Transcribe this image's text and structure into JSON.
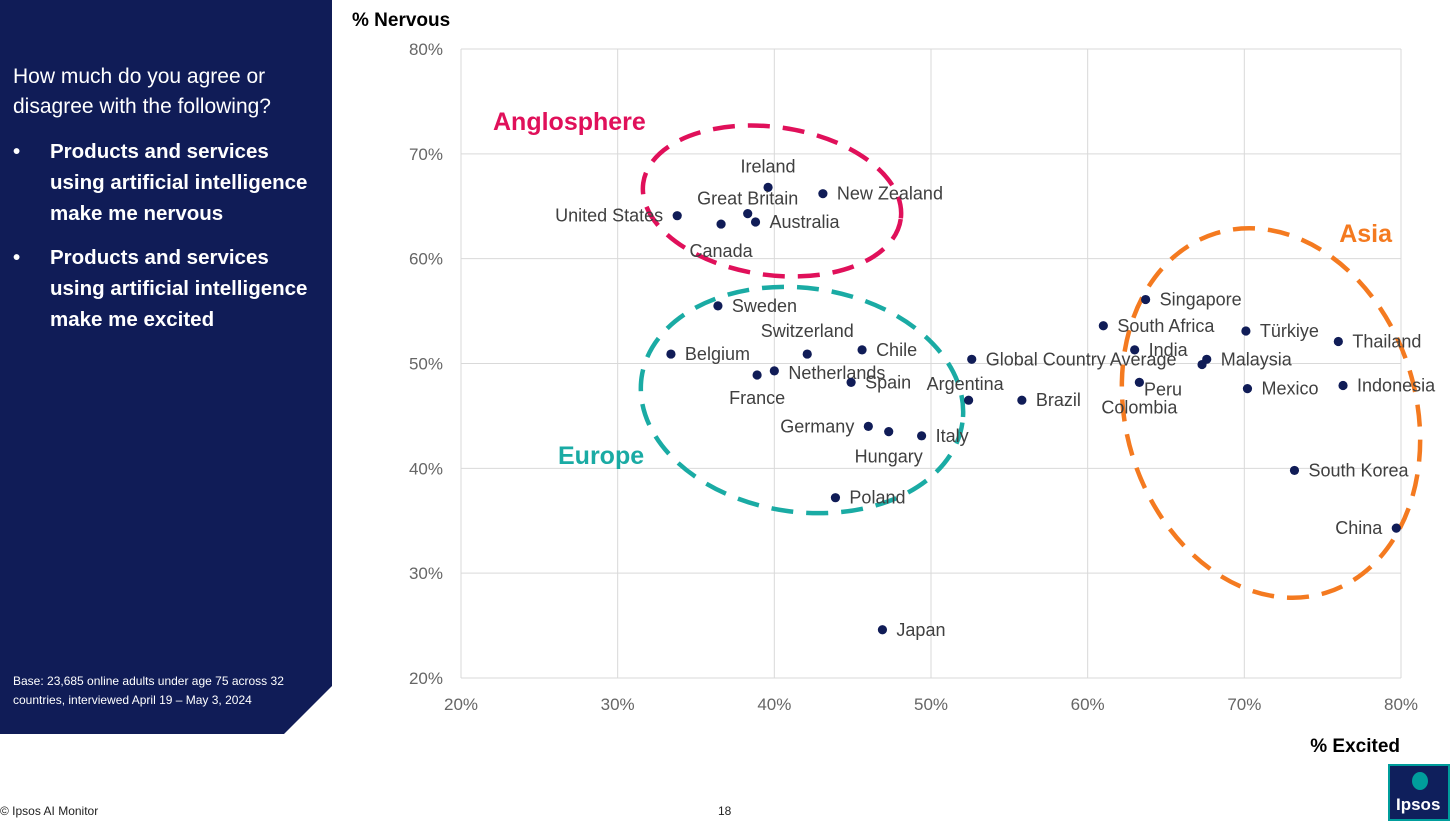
{
  "sidebar": {
    "question": "How much do you agree or disagree with the following?",
    "bullet_glyph": "•",
    "bullets": [
      "Products and services using artificial intelligence make me nervous",
      "Products and services using artificial intelligence make me excited"
    ],
    "base_note": "Base: 23,685 online adults under age 75 across 32 countries, interviewed April 19 – May 3, 2024"
  },
  "footer": {
    "copyright": "© Ipsos AI Monitor",
    "page_number": "18",
    "logo_text": "Ipsos"
  },
  "colors": {
    "sidebar_bg": "#101c57",
    "point": "#101c57",
    "anglosphere": "#e0105a",
    "europe": "#1aaba4",
    "asia": "#f47a20",
    "grid": "#d9d9d9"
  },
  "chart_data": {
    "type": "scatter",
    "xlabel": "% Excited",
    "ylabel": "% Nervous",
    "xlim": [
      20,
      80
    ],
    "ylim": [
      20,
      80
    ],
    "xticks": [
      "20%",
      "30%",
      "40%",
      "50%",
      "60%",
      "70%",
      "80%"
    ],
    "yticks": [
      "20%",
      "30%",
      "40%",
      "50%",
      "60%",
      "70%",
      "80%"
    ],
    "grid": true,
    "points": [
      {
        "label": "Ireland",
        "x": 39.6,
        "y": 66.8
      },
      {
        "label": "New Zealand",
        "x": 43.1,
        "y": 66.2
      },
      {
        "label": "Great Britain",
        "x": 38.3,
        "y": 64.3
      },
      {
        "label": "United States",
        "x": 33.8,
        "y": 64.1
      },
      {
        "label": "Australia",
        "x": 38.8,
        "y": 63.5
      },
      {
        "label": "Canada",
        "x": 36.6,
        "y": 63.3
      },
      {
        "label": "Sweden",
        "x": 36.4,
        "y": 55.5
      },
      {
        "label": "Switzerland",
        "x": 42.1,
        "y": 50.9
      },
      {
        "label": "Belgium",
        "x": 33.4,
        "y": 50.9
      },
      {
        "label": "Chile",
        "x": 45.6,
        "y": 51.3
      },
      {
        "label": "Netherlands",
        "x": 40.0,
        "y": 49.3
      },
      {
        "label": "France",
        "x": 38.9,
        "y": 48.9
      },
      {
        "label": "Spain",
        "x": 44.9,
        "y": 48.2
      },
      {
        "label": "Germany",
        "x": 46.0,
        "y": 44.0
      },
      {
        "label": "Hungary",
        "x": 47.3,
        "y": 43.5
      },
      {
        "label": "Italy",
        "x": 49.4,
        "y": 43.1
      },
      {
        "label": "Argentina",
        "x": 52.4,
        "y": 46.5
      },
      {
        "label": "Poland",
        "x": 43.9,
        "y": 37.2
      },
      {
        "label": "Japan",
        "x": 46.9,
        "y": 24.6
      },
      {
        "label": "Global Country Average",
        "x": 52.6,
        "y": 50.4
      },
      {
        "label": "Brazil",
        "x": 55.8,
        "y": 46.5
      },
      {
        "label": "Singapore",
        "x": 63.7,
        "y": 56.1
      },
      {
        "label": "South Africa",
        "x": 61.0,
        "y": 53.6
      },
      {
        "label": "India",
        "x": 63.0,
        "y": 51.3
      },
      {
        "label": "Colombia",
        "x": 63.3,
        "y": 48.2
      },
      {
        "label": "Peru",
        "x": 67.3,
        "y": 49.9
      },
      {
        "label": "Malaysia",
        "x": 67.6,
        "y": 50.4
      },
      {
        "label": "Türkiye",
        "x": 70.1,
        "y": 53.1
      },
      {
        "label": "Mexico",
        "x": 70.2,
        "y": 47.6
      },
      {
        "label": "Thailand",
        "x": 76.0,
        "y": 52.1
      },
      {
        "label": "Indonesia",
        "x": 76.3,
        "y": 47.9
      },
      {
        "label": "South Korea",
        "x": 73.2,
        "y": 39.8
      },
      {
        "label": "China",
        "x": 79.7,
        "y": 34.3
      }
    ],
    "groups": [
      {
        "name": "Anglosphere",
        "color": "#e0105a"
      },
      {
        "name": "Europe",
        "color": "#1aaba4"
      },
      {
        "name": "Asia",
        "color": "#f47a20"
      }
    ]
  }
}
